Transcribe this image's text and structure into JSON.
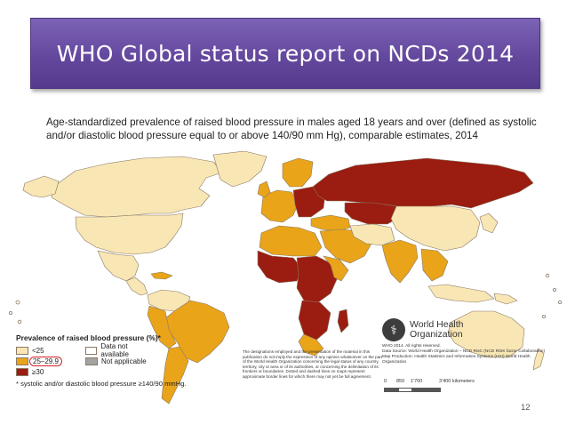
{
  "slide": {
    "title": "WHO Global status report on NCDs 2014",
    "page_number": "12"
  },
  "map": {
    "subtitle_line1": "Age-standardized prevalence of raised blood pressure in males aged 18 years and over (defined as systolic",
    "subtitle_line2": "and/or diastolic blood pressure equal to or above 140/90 mm Hg), comparable estimates, 2014",
    "colors": {
      "lt25": "#f8e6b4",
      "r25_29": "#e9a419",
      "ge30": "#9b1c10",
      "no_data": "#ffffff",
      "not_applicable": "#a3a3a3",
      "ocean": "#ffffff",
      "border": "#8a7a66"
    },
    "legend": {
      "title": "Prevalence of raised blood pressure (%)*",
      "lt25": "<25",
      "r25_29": "25–29.9",
      "ge30": "≥30",
      "no_data": "Data not available",
      "not_applicable": "Not applicable",
      "footnote": "* systolic and/or diastolic blood pressure ≥140/90 mmHg."
    },
    "disclaimer": "The designations employed and the presentation of the material in this publication do not imply the expression of any opinion whatsoever on the part of the World Health Organization concerning the legal status of any country, territory, city or area or of its authorities, or concerning the delimitation of its frontiers or boundaries. Dotted and dashed lines on maps represent approximate border lines for which there may not yet be full agreement.",
    "who": {
      "name_line1": "World Health",
      "name_line2": "Organization",
      "copyright": "WHO 2014. All rights reserved.",
      "data_source": "Data Source: World Health Organization – NCD RisC (NCD RiSK factor Collaboration)",
      "map_production": "Map Production: Health Statistics and Information Systems (HSI) World Health Organization"
    },
    "scale": {
      "tick0": "0",
      "tick1": "850",
      "tick2": "1'700",
      "tick3": "3'400 kilometers"
    }
  }
}
